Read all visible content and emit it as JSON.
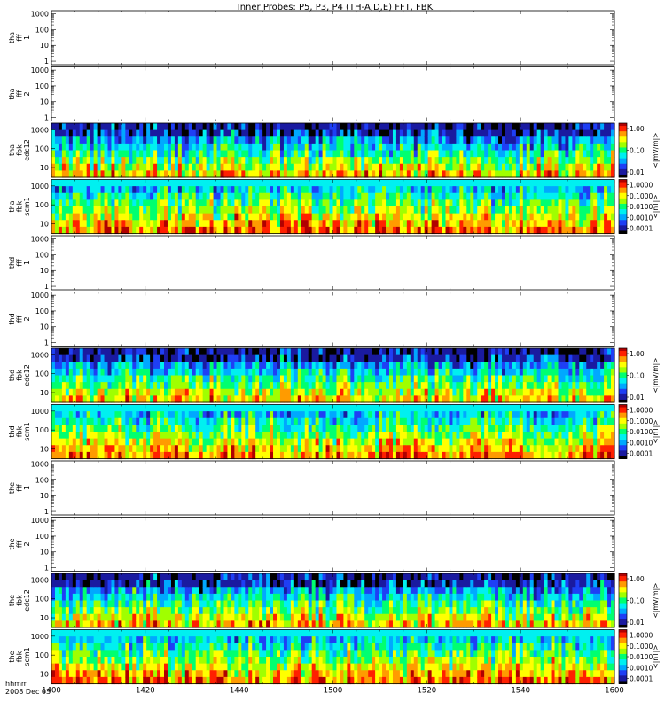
{
  "chart_data": {
    "type": "heatmap",
    "title": "Inner Probes: P5, P3, P4 (TH-A,D,E) FFT, FBK",
    "time_axis": {
      "label_line1": "hhmm",
      "label_line2": "2008 Dec 03",
      "ticks": [
        "1400",
        "1420",
        "1440",
        "1500",
        "1520",
        "1540",
        "1600"
      ],
      "range_minutes": [
        0,
        120
      ]
    },
    "panels": [
      {
        "label": [
          "tha",
          "fff",
          "1"
        ],
        "type": "empty",
        "y_ticks": [
          "1000",
          "100",
          "10",
          "1"
        ],
        "yrange": [
          1,
          1000
        ]
      },
      {
        "label": [
          "tha",
          "fff",
          "2"
        ],
        "type": "empty",
        "y_ticks": [
          "1000",
          "100",
          "10",
          "1"
        ],
        "yrange": [
          1,
          1000
        ]
      },
      {
        "label": [
          "tha",
          "fbk",
          "edc12"
        ],
        "type": "spectrogram",
        "y_ticks": [
          "1000",
          "100",
          "10"
        ],
        "colorbar": {
          "ticks": [
            "1.00",
            "0.10",
            "0.01"
          ],
          "unit": "<|mV/m|>"
        }
      },
      {
        "label": [
          "tha",
          "fbk",
          "scm1"
        ],
        "type": "spectrogram",
        "y_ticks": [
          "1000",
          "100",
          "10"
        ],
        "colorbar": {
          "ticks": [
            "1.0000",
            "0.1000",
            "0.0100",
            "0.0010",
            "0.0001"
          ],
          "unit": "<|nT|>"
        }
      },
      {
        "label": [
          "thd",
          "fff",
          "1"
        ],
        "type": "empty",
        "y_ticks": [
          "1000",
          "100",
          "10",
          "1"
        ],
        "yrange": [
          1,
          1000
        ]
      },
      {
        "label": [
          "thd",
          "fff",
          "2"
        ],
        "type": "empty",
        "y_ticks": [
          "1000",
          "100",
          "10",
          "1"
        ],
        "yrange": [
          1,
          1000
        ]
      },
      {
        "label": [
          "thd",
          "fbk",
          "edc12"
        ],
        "type": "spectrogram",
        "y_ticks": [
          "1000",
          "100",
          "10"
        ],
        "colorbar": {
          "ticks": [
            "1.00",
            "0.10",
            "0.01"
          ],
          "unit": "<|mV/m|>"
        }
      },
      {
        "label": [
          "thd",
          "fbk",
          "scm1"
        ],
        "type": "spectrogram",
        "y_ticks": [
          "1000",
          "100",
          "10"
        ],
        "colorbar": {
          "ticks": [
            "1.0000",
            "0.1000",
            "0.0100",
            "0.0010",
            "0.0001"
          ],
          "unit": "<|nT|>"
        }
      },
      {
        "label": [
          "the",
          "fff",
          "1"
        ],
        "type": "empty",
        "y_ticks": [
          "1000",
          "100",
          "10",
          "1"
        ],
        "yrange": [
          1,
          1000
        ]
      },
      {
        "label": [
          "the",
          "fff",
          "2"
        ],
        "type": "empty",
        "y_ticks": [
          "1000",
          "100",
          "10",
          "1"
        ],
        "yrange": [
          1,
          1000
        ]
      },
      {
        "label": [
          "the",
          "fbk",
          "edc12"
        ],
        "type": "spectrogram",
        "y_ticks": [
          "1000",
          "100",
          "10"
        ],
        "colorbar": {
          "ticks": [
            "1.00",
            "0.10",
            "0.01"
          ],
          "unit": "<|mV/m|>"
        }
      },
      {
        "label": [
          "the",
          "fbk",
          "scm1"
        ],
        "type": "spectrogram",
        "y_ticks": [
          "1000",
          "100",
          "10"
        ],
        "colorbar": {
          "ticks": [
            "1.0000",
            "0.1000",
            "0.0100",
            "0.0010",
            "0.0001"
          ],
          "unit": "<|nT|>"
        }
      }
    ],
    "colormap": [
      "#000000",
      "#1a1aa0",
      "#1f3ff5",
      "#00a8ff",
      "#00f0f0",
      "#00ff70",
      "#a0ff00",
      "#ffff00",
      "#ff9b00",
      "#ff2000",
      "#b00000"
    ],
    "grid": false,
    "legend": "colorbar right of each spectrogram"
  }
}
